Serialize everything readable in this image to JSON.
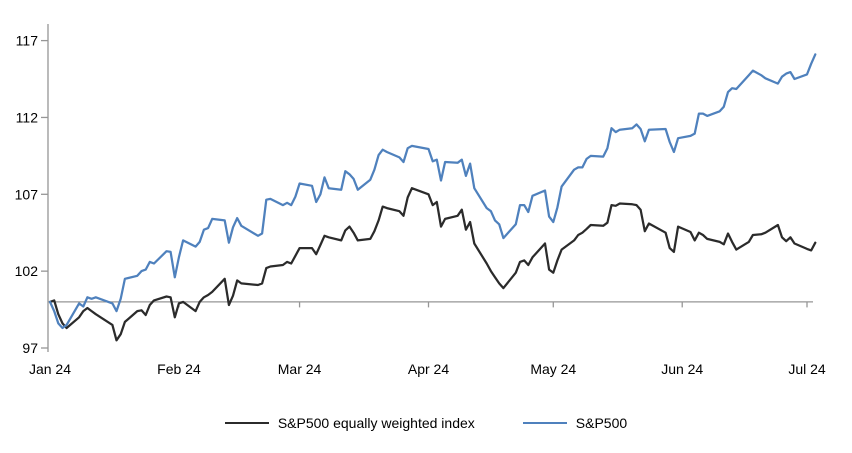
{
  "chart_data": {
    "type": "line",
    "title": "",
    "xlabel": "",
    "ylabel": "",
    "grid": false,
    "legend_position": "bottom-center",
    "baseline_value": 100,
    "axis_color": "#969696",
    "y_axis": {
      "ticks": [
        97,
        102,
        107,
        112,
        117
      ],
      "tick_labels": [
        "97",
        "102",
        "107",
        "112",
        "117"
      ],
      "range": [
        97,
        118.3
      ]
    },
    "x_axis": {
      "tick_labels": [
        "Jan 24",
        "Feb 24",
        "Mar 24",
        "Apr 24",
        "May 24",
        "Jun 24",
        "Jul 24"
      ],
      "tick_dates": [
        "01-01",
        "02-01",
        "03-01",
        "04-01",
        "05-01",
        "06-01",
        "07-01"
      ]
    },
    "dates": [
      "01-01",
      "01-02",
      "01-03",
      "01-04",
      "01-05",
      "01-08",
      "01-09",
      "01-10",
      "01-11",
      "01-12",
      "01-16",
      "01-17",
      "01-18",
      "01-19",
      "01-22",
      "01-23",
      "01-24",
      "01-25",
      "01-26",
      "01-29",
      "01-30",
      "01-31",
      "02-01",
      "02-02",
      "02-05",
      "02-06",
      "02-07",
      "02-08",
      "02-09",
      "02-12",
      "02-13",
      "02-14",
      "02-15",
      "02-16",
      "02-20",
      "02-21",
      "02-22",
      "02-23",
      "02-26",
      "02-27",
      "02-28",
      "02-29",
      "03-01",
      "03-04",
      "03-05",
      "03-06",
      "03-07",
      "03-08",
      "03-11",
      "03-12",
      "03-13",
      "03-14",
      "03-15",
      "03-18",
      "03-19",
      "03-20",
      "03-21",
      "03-22",
      "03-25",
      "03-26",
      "03-27",
      "03-28",
      "04-01",
      "04-02",
      "04-03",
      "04-04",
      "04-05",
      "04-08",
      "04-09",
      "04-10",
      "04-11",
      "04-12",
      "04-15",
      "04-16",
      "04-17",
      "04-18",
      "04-19",
      "04-22",
      "04-23",
      "04-24",
      "04-25",
      "04-26",
      "04-29",
      "04-30",
      "05-01",
      "05-02",
      "05-03",
      "05-06",
      "05-07",
      "05-08",
      "05-09",
      "05-10",
      "05-13",
      "05-14",
      "05-15",
      "05-16",
      "05-17",
      "05-20",
      "05-21",
      "05-22",
      "05-23",
      "05-24",
      "05-28",
      "05-29",
      "05-30",
      "05-31",
      "06-03",
      "06-04",
      "06-05",
      "06-06",
      "06-07",
      "06-10",
      "06-11",
      "06-12",
      "06-13",
      "06-14",
      "06-17",
      "06-18",
      "06-20",
      "06-21",
      "06-24",
      "06-25",
      "06-26",
      "06-27",
      "06-28",
      "07-01",
      "07-02",
      "07-03"
    ],
    "series": [
      {
        "name": "S&P500 equally weighted index",
        "color": "#2b2b2b",
        "values": [
          100,
          100.1,
          99.2,
          98.6,
          98.3,
          99.0,
          99.4,
          99.6,
          99.4,
          99.2,
          98.5,
          97.5,
          97.9,
          98.7,
          99.4,
          99.45,
          99.15,
          99.8,
          100.1,
          100.35,
          100.3,
          99.0,
          99.9,
          100.0,
          99.4,
          100.0,
          100.3,
          100.45,
          100.65,
          101.5,
          99.8,
          100.4,
          101.4,
          101.2,
          101.1,
          101.2,
          102.2,
          102.3,
          102.4,
          102.6,
          102.5,
          103.0,
          103.5,
          103.5,
          103.1,
          103.7,
          104.3,
          104.2,
          104.0,
          104.65,
          104.9,
          104.5,
          104.0,
          104.1,
          104.6,
          105.3,
          106.2,
          106.1,
          105.9,
          105.6,
          106.8,
          107.4,
          107.0,
          106.3,
          106.5,
          104.9,
          105.4,
          105.6,
          106.0,
          104.7,
          105.2,
          103.8,
          102.5,
          102.0,
          101.6,
          101.2,
          100.9,
          101.9,
          102.6,
          102.7,
          102.4,
          102.9,
          103.8,
          102.1,
          101.9,
          102.7,
          103.4,
          104.0,
          104.35,
          104.5,
          104.75,
          105.0,
          104.95,
          105.15,
          106.3,
          106.25,
          106.4,
          106.35,
          106.3,
          106.0,
          104.6,
          105.1,
          104.5,
          103.5,
          103.25,
          104.9,
          104.55,
          104.0,
          104.5,
          104.35,
          104.1,
          103.9,
          103.75,
          104.45,
          103.9,
          103.4,
          103.9,
          104.35,
          104.4,
          104.5,
          105.0,
          104.2,
          103.95,
          104.2,
          103.8,
          103.45,
          103.35,
          103.85
        ]
      },
      {
        "name": "S&P500",
        "color": "#4f81bd",
        "values": [
          100,
          99.4,
          98.6,
          98.3,
          98.5,
          99.9,
          99.7,
          100.3,
          100.2,
          100.3,
          99.9,
          99.4,
          100.2,
          101.5,
          101.7,
          102.0,
          102.1,
          102.6,
          102.5,
          103.3,
          103.25,
          101.6,
          102.9,
          104.0,
          103.6,
          103.9,
          104.7,
          104.8,
          105.4,
          105.3,
          103.85,
          104.85,
          105.45,
          104.95,
          104.3,
          104.45,
          106.65,
          106.7,
          106.3,
          106.45,
          106.3,
          106.85,
          107.7,
          107.55,
          106.5,
          107.0,
          108.1,
          107.4,
          107.3,
          108.5,
          108.3,
          108.0,
          107.3,
          107.95,
          108.6,
          109.55,
          109.9,
          109.75,
          109.4,
          109.1,
          110.0,
          110.15,
          109.95,
          109.15,
          109.25,
          107.9,
          109.1,
          109.05,
          109.25,
          108.2,
          109.0,
          107.4,
          106.1,
          105.9,
          105.3,
          105.05,
          104.15,
          105.05,
          106.3,
          106.3,
          105.85,
          106.9,
          107.25,
          105.55,
          105.2,
          106.15,
          107.5,
          108.6,
          108.75,
          108.75,
          109.3,
          109.5,
          109.45,
          110.0,
          111.3,
          111.05,
          111.2,
          111.3,
          111.55,
          111.25,
          110.45,
          111.2,
          111.25,
          110.4,
          109.75,
          110.65,
          110.8,
          110.95,
          112.25,
          112.25,
          112.1,
          112.4,
          112.7,
          113.65,
          113.9,
          113.85,
          114.75,
          115.05,
          114.75,
          114.55,
          114.2,
          114.65,
          114.85,
          114.95,
          114.5,
          114.8,
          115.5,
          116.1
        ]
      }
    ]
  },
  "legend": {
    "equal_weight_label": "S&P500 equally weighted index",
    "sp500_label": "S&P500"
  }
}
